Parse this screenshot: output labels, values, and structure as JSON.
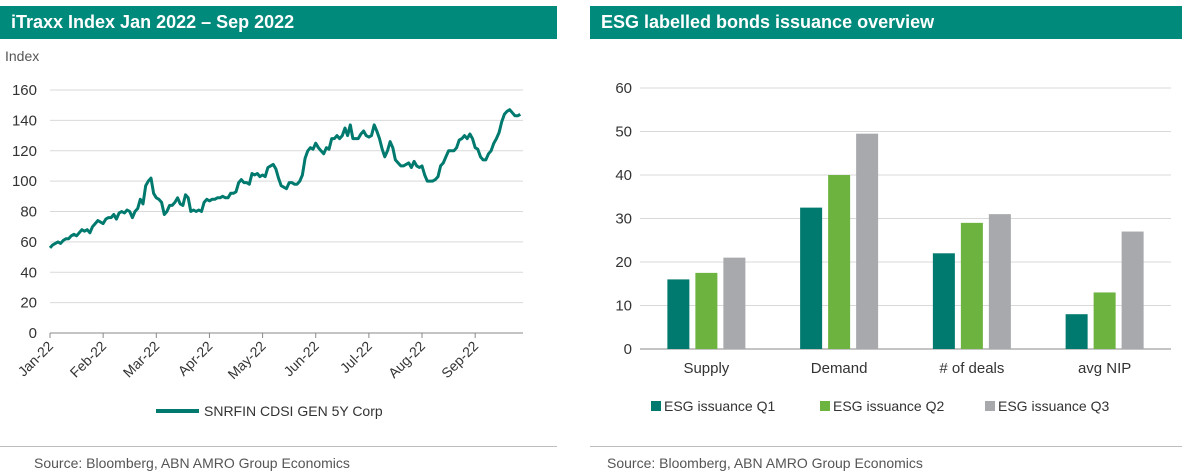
{
  "left": {
    "title": "iTraxx Index Jan 2022 – Sep 2022",
    "source": "Source: Bloomberg, ABN AMRO Group Economics"
  },
  "right": {
    "title": "ESG labelled bonds issuance overview",
    "source": "Source: Bloomberg, ABN AMRO Group Economics"
  },
  "chart_data": [
    {
      "type": "line",
      "title": "iTraxx Index Jan 2022 – Sep 2022",
      "ylabel": "Index",
      "ylim": [
        0,
        160
      ],
      "yticks": [
        0,
        20,
        40,
        60,
        80,
        100,
        120,
        140,
        160
      ],
      "xlabels": [
        "Jan-22",
        "Feb-22",
        "Mar-22",
        "Apr-22",
        "May-22",
        "Jun-22",
        "Jul-22",
        "Aug-22",
        "Sep-22"
      ],
      "grid": "horizontal",
      "legend": "bottom",
      "line_color": "#007a6e",
      "series": [
        {
          "name": "SNRFIN CDSI GEN 5Y Corp",
          "x": [
            0.0,
            0.05,
            0.1,
            0.15,
            0.2,
            0.25,
            0.3,
            0.35,
            0.4,
            0.45,
            0.5,
            0.55,
            0.6,
            0.65,
            0.7,
            0.75,
            0.8,
            0.85,
            0.9,
            0.95,
            1.0,
            1.05,
            1.1,
            1.15,
            1.2,
            1.25,
            1.3,
            1.35,
            1.4,
            1.45,
            1.5,
            1.55,
            1.6,
            1.65,
            1.7,
            1.75,
            1.8,
            1.85,
            1.9,
            1.95,
            2.0,
            2.05,
            2.1,
            2.15,
            2.2,
            2.25,
            2.3,
            2.35,
            2.4,
            2.45,
            2.5,
            2.55,
            2.6,
            2.65,
            2.7,
            2.75,
            2.8,
            2.85,
            2.9,
            2.95,
            3.0,
            3.05,
            3.1,
            3.15,
            3.2,
            3.25,
            3.3,
            3.35,
            3.4,
            3.45,
            3.5,
            3.55,
            3.6,
            3.65,
            3.7,
            3.75,
            3.8,
            3.85,
            3.9,
            3.95,
            4.0,
            4.05,
            4.1,
            4.15,
            4.2,
            4.25,
            4.3,
            4.35,
            4.4,
            4.45,
            4.5,
            4.55,
            4.6,
            4.65,
            4.7,
            4.75,
            4.8,
            4.85,
            4.9,
            4.95,
            5.0,
            5.05,
            5.1,
            5.15,
            5.2,
            5.25,
            5.3,
            5.35,
            5.4,
            5.45,
            5.5,
            5.55,
            5.6,
            5.65,
            5.7,
            5.75,
            5.8,
            5.85,
            5.9,
            5.95,
            6.0,
            6.05,
            6.1,
            6.15,
            6.2,
            6.25,
            6.3,
            6.35,
            6.4,
            6.45,
            6.5,
            6.55,
            6.6,
            6.65,
            6.7,
            6.75,
            6.8,
            6.85,
            6.9,
            6.95,
            7.0,
            7.05,
            7.1,
            7.15,
            7.2,
            7.25,
            7.3,
            7.35,
            7.4,
            7.45,
            7.5,
            7.55,
            7.6,
            7.65,
            7.7,
            7.75,
            7.8,
            7.85,
            7.9,
            7.95,
            8.0,
            8.05,
            8.1,
            8.15,
            8.2,
            8.25,
            8.3,
            8.35,
            8.4,
            8.45,
            8.5,
            8.55,
            8.6,
            8.65,
            8.7,
            8.75,
            8.8,
            8.85
          ],
          "values": [
            56,
            58,
            59,
            60,
            59,
            61,
            62,
            62,
            64,
            65,
            64,
            66,
            68,
            67,
            68,
            66,
            70,
            72,
            74,
            73,
            72,
            75,
            76,
            76,
            78,
            75,
            79,
            80,
            79,
            81,
            80,
            76,
            80,
            82,
            88,
            85,
            97,
            100,
            102,
            92,
            89,
            88,
            86,
            78,
            80,
            84,
            84,
            86,
            89,
            85,
            84,
            91,
            89,
            80,
            81,
            80,
            81,
            80,
            86,
            88,
            87,
            88,
            88,
            89,
            89,
            90,
            89,
            89,
            92,
            92,
            93,
            99,
            101,
            99,
            99,
            98,
            105,
            104,
            105,
            103,
            104,
            103,
            109,
            110,
            111,
            108,
            102,
            97,
            96,
            95,
            99,
            99,
            98,
            98,
            100,
            104,
            115,
            120,
            122,
            121,
            125,
            122,
            120,
            118,
            122,
            121,
            128,
            128,
            130,
            128,
            130,
            135,
            130,
            137,
            128,
            128,
            128,
            131,
            133,
            130,
            129,
            130,
            137,
            133,
            128,
            121,
            116,
            120,
            126,
            122,
            114,
            112,
            110,
            110,
            111,
            112,
            109,
            113,
            110,
            109,
            110,
            104,
            100,
            100,
            100,
            101,
            103,
            110,
            112,
            116,
            120,
            120,
            120,
            122,
            127,
            128,
            130,
            128,
            131,
            128,
            122,
            121,
            116,
            114,
            114,
            118,
            120,
            125,
            128,
            132,
            139,
            144,
            146,
            147,
            145,
            143,
            143,
            144
          ]
        }
      ]
    },
    {
      "type": "bar",
      "title": "ESG labelled bonds issuance overview",
      "categories": [
        "Supply",
        "Demand",
        "# of deals",
        "avg NIP"
      ],
      "ylim": [
        0,
        60
      ],
      "yticks": [
        0,
        10,
        20,
        30,
        40,
        50,
        60
      ],
      "grid": "horizontal",
      "legend": "bottom",
      "series": [
        {
          "name": "ESG issuance Q1",
          "color": "#007a6e",
          "values": [
            16,
            32.5,
            22,
            8
          ]
        },
        {
          "name": "ESG issuance Q2",
          "color": "#6db33f",
          "values": [
            17.5,
            40,
            29,
            13
          ]
        },
        {
          "name": "ESG issuance Q3",
          "color": "#a7a9ac",
          "values": [
            21,
            49.5,
            31,
            27
          ]
        }
      ]
    }
  ]
}
